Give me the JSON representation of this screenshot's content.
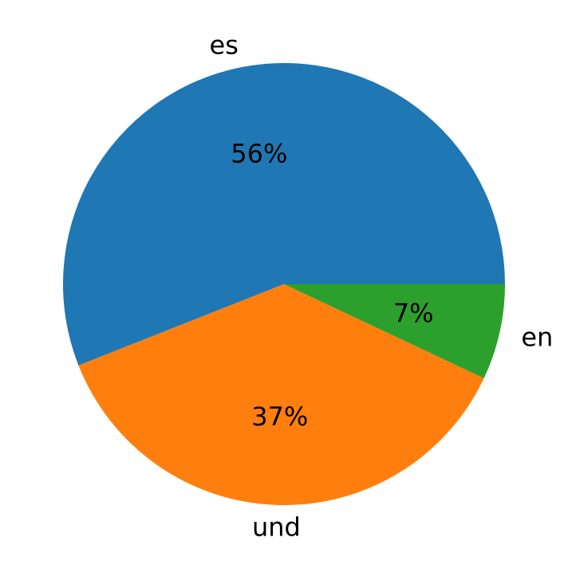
{
  "chart_data": {
    "type": "pie",
    "title": "",
    "start_angle_deg": 0,
    "direction": "counterclockwise",
    "slices": [
      {
        "label": "es",
        "value": 56,
        "value_label": "56%",
        "color": "#1f77b4"
      },
      {
        "label": "und",
        "value": 37,
        "value_label": "37%",
        "color": "#ff7f0e"
      },
      {
        "label": "en",
        "value": 7,
        "value_label": "7%",
        "color": "#2ca02c"
      }
    ],
    "legend": "none"
  }
}
